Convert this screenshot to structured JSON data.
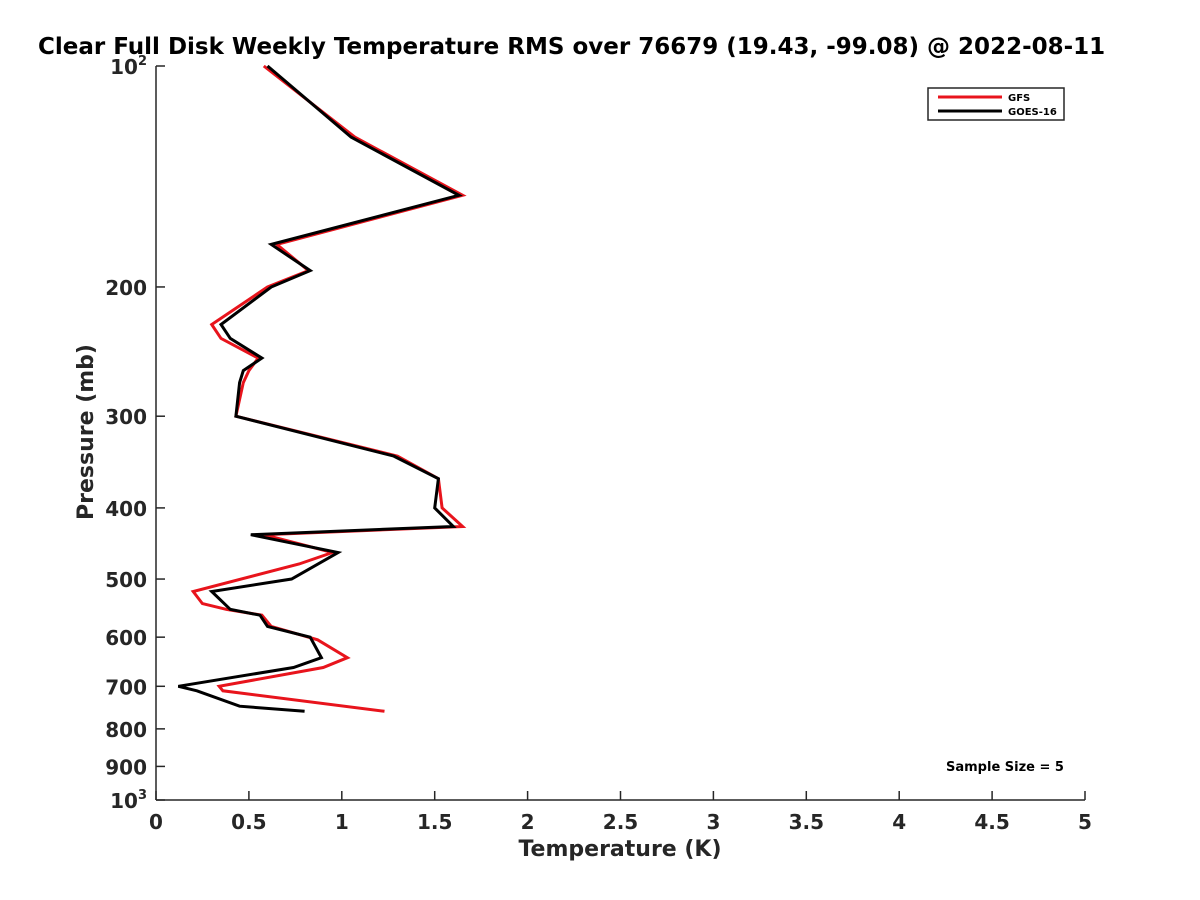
{
  "chart_data": {
    "type": "line",
    "title": "Clear Full Disk Weekly Temperature RMS over 76679 (19.43, -99.08) @ 2022-08-11",
    "xlabel": "Temperature (K)",
    "ylabel": "Pressure (mb)",
    "xlim": [
      0,
      5
    ],
    "ylim": [
      100,
      1000
    ],
    "y_scale": "log",
    "y_reversed": true,
    "x_ticks": [
      {
        "value": 0,
        "label": "0"
      },
      {
        "value": 0.5,
        "label": "0.5"
      },
      {
        "value": 1,
        "label": "1"
      },
      {
        "value": 1.5,
        "label": "1.5"
      },
      {
        "value": 2,
        "label": "2"
      },
      {
        "value": 2.5,
        "label": "2.5"
      },
      {
        "value": 3,
        "label": "3"
      },
      {
        "value": 3.5,
        "label": "3.5"
      },
      {
        "value": 4,
        "label": "4"
      },
      {
        "value": 4.5,
        "label": "4.5"
      },
      {
        "value": 5,
        "label": "5"
      }
    ],
    "y_ticks": [
      {
        "value": 100,
        "label": "10",
        "sup": "2"
      },
      {
        "value": 200,
        "label": "200",
        "sup": ""
      },
      {
        "value": 300,
        "label": "300",
        "sup": ""
      },
      {
        "value": 400,
        "label": "400",
        "sup": ""
      },
      {
        "value": 500,
        "label": "500",
        "sup": ""
      },
      {
        "value": 600,
        "label": "600",
        "sup": ""
      },
      {
        "value": 700,
        "label": "700",
        "sup": ""
      },
      {
        "value": 800,
        "label": "800",
        "sup": ""
      },
      {
        "value": 900,
        "label": "900",
        "sup": ""
      },
      {
        "value": 1000,
        "label": "10",
        "sup": "3"
      }
    ],
    "grid": false,
    "legend_position": "top-right",
    "series": [
      {
        "name": "GFS",
        "color": "#e8141c",
        "points": [
          [
            0.58,
            100
          ],
          [
            1.07,
            125
          ],
          [
            1.65,
            150
          ],
          [
            0.65,
            175
          ],
          [
            0.82,
            190
          ],
          [
            0.6,
            200
          ],
          [
            0.3,
            225
          ],
          [
            0.35,
            235
          ],
          [
            0.55,
            250
          ],
          [
            0.5,
            260
          ],
          [
            0.47,
            270
          ],
          [
            0.43,
            300
          ],
          [
            1.3,
            340
          ],
          [
            1.52,
            365
          ],
          [
            1.54,
            400
          ],
          [
            1.65,
            424
          ],
          [
            0.58,
            435
          ],
          [
            0.95,
            460
          ],
          [
            0.77,
            477
          ],
          [
            0.2,
            520
          ],
          [
            0.25,
            540
          ],
          [
            0.38,
            550
          ],
          [
            0.57,
            560
          ],
          [
            0.62,
            580
          ],
          [
            0.87,
            605
          ],
          [
            1.03,
            640
          ],
          [
            0.9,
            660
          ],
          [
            0.34,
            700
          ],
          [
            0.36,
            710
          ],
          [
            1.23,
            757
          ]
        ]
      },
      {
        "name": "GOES-16",
        "color": "#000000",
        "points": [
          [
            0.6,
            100
          ],
          [
            1.05,
            125
          ],
          [
            1.63,
            150
          ],
          [
            0.62,
            175
          ],
          [
            0.83,
            190
          ],
          [
            0.62,
            200
          ],
          [
            0.35,
            225
          ],
          [
            0.4,
            235
          ],
          [
            0.57,
            250
          ],
          [
            0.47,
            260
          ],
          [
            0.45,
            270
          ],
          [
            0.43,
            300
          ],
          [
            1.28,
            340
          ],
          [
            1.52,
            365
          ],
          [
            1.5,
            400
          ],
          [
            1.6,
            424
          ],
          [
            0.51,
            435
          ],
          [
            0.98,
            460
          ],
          [
            0.73,
            500
          ],
          [
            0.3,
            520
          ],
          [
            0.4,
            550
          ],
          [
            0.56,
            560
          ],
          [
            0.6,
            580
          ],
          [
            0.83,
            600
          ],
          [
            0.89,
            640
          ],
          [
            0.74,
            660
          ],
          [
            0.12,
            700
          ],
          [
            0.22,
            710
          ],
          [
            0.45,
            745
          ],
          [
            0.8,
            757
          ]
        ]
      }
    ],
    "annotation": "Sample Size = 5"
  }
}
